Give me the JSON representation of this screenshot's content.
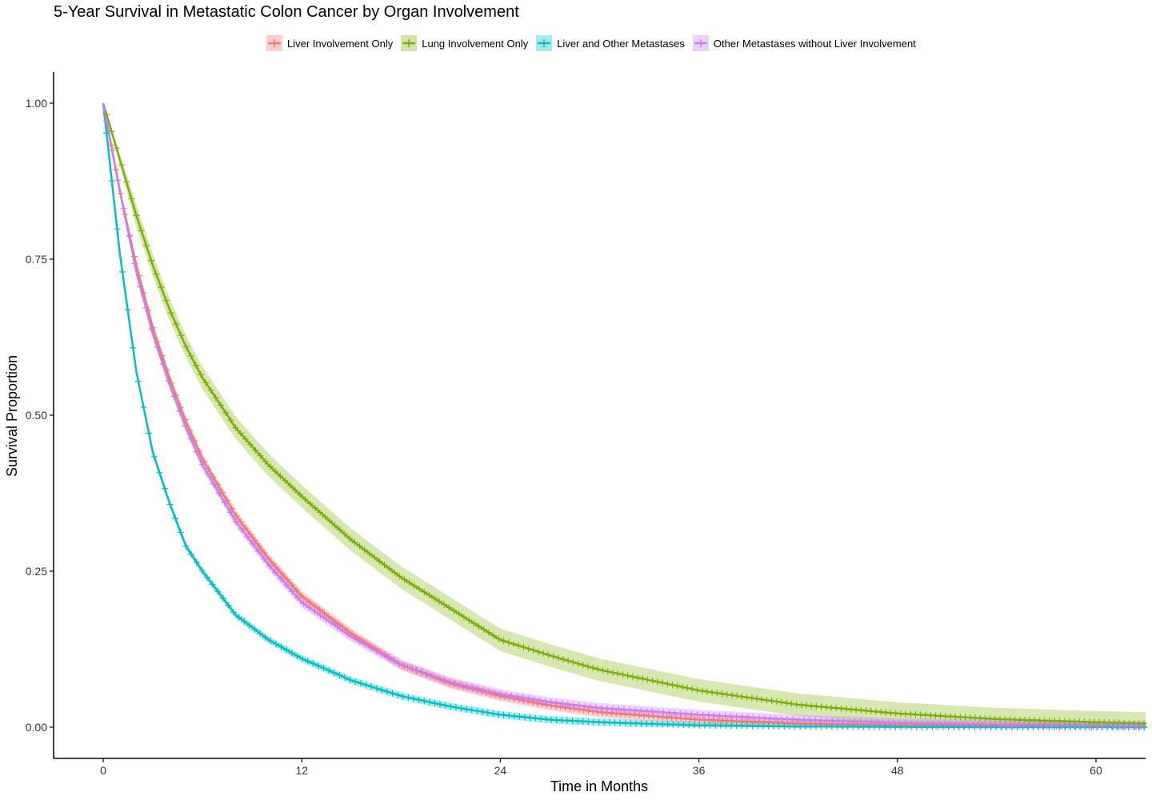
{
  "chart_data": {
    "type": "line",
    "title": "5-Year Survival in Metastatic Colon Cancer by Organ Involvement",
    "xlabel": "Time in Months",
    "ylabel": "Survival Proportion",
    "xlim": [
      -3,
      63
    ],
    "ylim": [
      -0.05,
      1.05
    ],
    "x_ticks": [
      0,
      12,
      24,
      36,
      48,
      60
    ],
    "x_tick_labels": [
      "0",
      "12",
      "24",
      "36",
      "48",
      "60"
    ],
    "y_ticks": [
      0.0,
      0.25,
      0.5,
      0.75,
      1.0
    ],
    "y_tick_labels": [
      "0.00",
      "0.25",
      "0.50",
      "0.75",
      "1.00"
    ],
    "grid": false,
    "legend_position": "top",
    "x": [
      0,
      1,
      2,
      3,
      4,
      5,
      6,
      8,
      10,
      12,
      15,
      18,
      21,
      24,
      27,
      30,
      36,
      42,
      48,
      54,
      60,
      63
    ],
    "series": [
      {
        "name": "Liver Involvement Only",
        "color": "#F8766D",
        "values": [
          1.0,
          0.86,
          0.74,
          0.64,
          0.56,
          0.49,
          0.43,
          0.34,
          0.27,
          0.21,
          0.15,
          0.1,
          0.07,
          0.05,
          0.035,
          0.024,
          0.012,
          0.006,
          0.003,
          0.002,
          0.001,
          0.001
        ],
        "ci_halfwidth": 0.008
      },
      {
        "name": "Lung Involvement Only",
        "color": "#7CAE00",
        "values": [
          1.0,
          0.91,
          0.82,
          0.74,
          0.67,
          0.61,
          0.56,
          0.48,
          0.42,
          0.37,
          0.3,
          0.24,
          0.19,
          0.14,
          0.115,
          0.092,
          0.059,
          0.036,
          0.022,
          0.013,
          0.008,
          0.006
        ],
        "ci_halfwidth": 0.018
      },
      {
        "name": "Liver and Other Metastases",
        "color": "#00BFC4",
        "values": [
          1.0,
          0.76,
          0.57,
          0.44,
          0.36,
          0.29,
          0.25,
          0.18,
          0.14,
          0.11,
          0.075,
          0.05,
          0.033,
          0.02,
          0.012,
          0.008,
          0.003,
          0.001,
          0.0005,
          0.0,
          0.0,
          0.0
        ],
        "ci_halfwidth": 0.006
      },
      {
        "name": "Other Metastases without Liver Involvement",
        "color": "#C77CFF",
        "values": [
          1.0,
          0.86,
          0.73,
          0.63,
          0.55,
          0.48,
          0.42,
          0.33,
          0.26,
          0.2,
          0.145,
          0.1,
          0.072,
          0.053,
          0.04,
          0.031,
          0.02,
          0.012,
          0.007,
          0.004,
          0.002,
          0.001
        ],
        "ci_halfwidth": 0.008
      }
    ]
  }
}
